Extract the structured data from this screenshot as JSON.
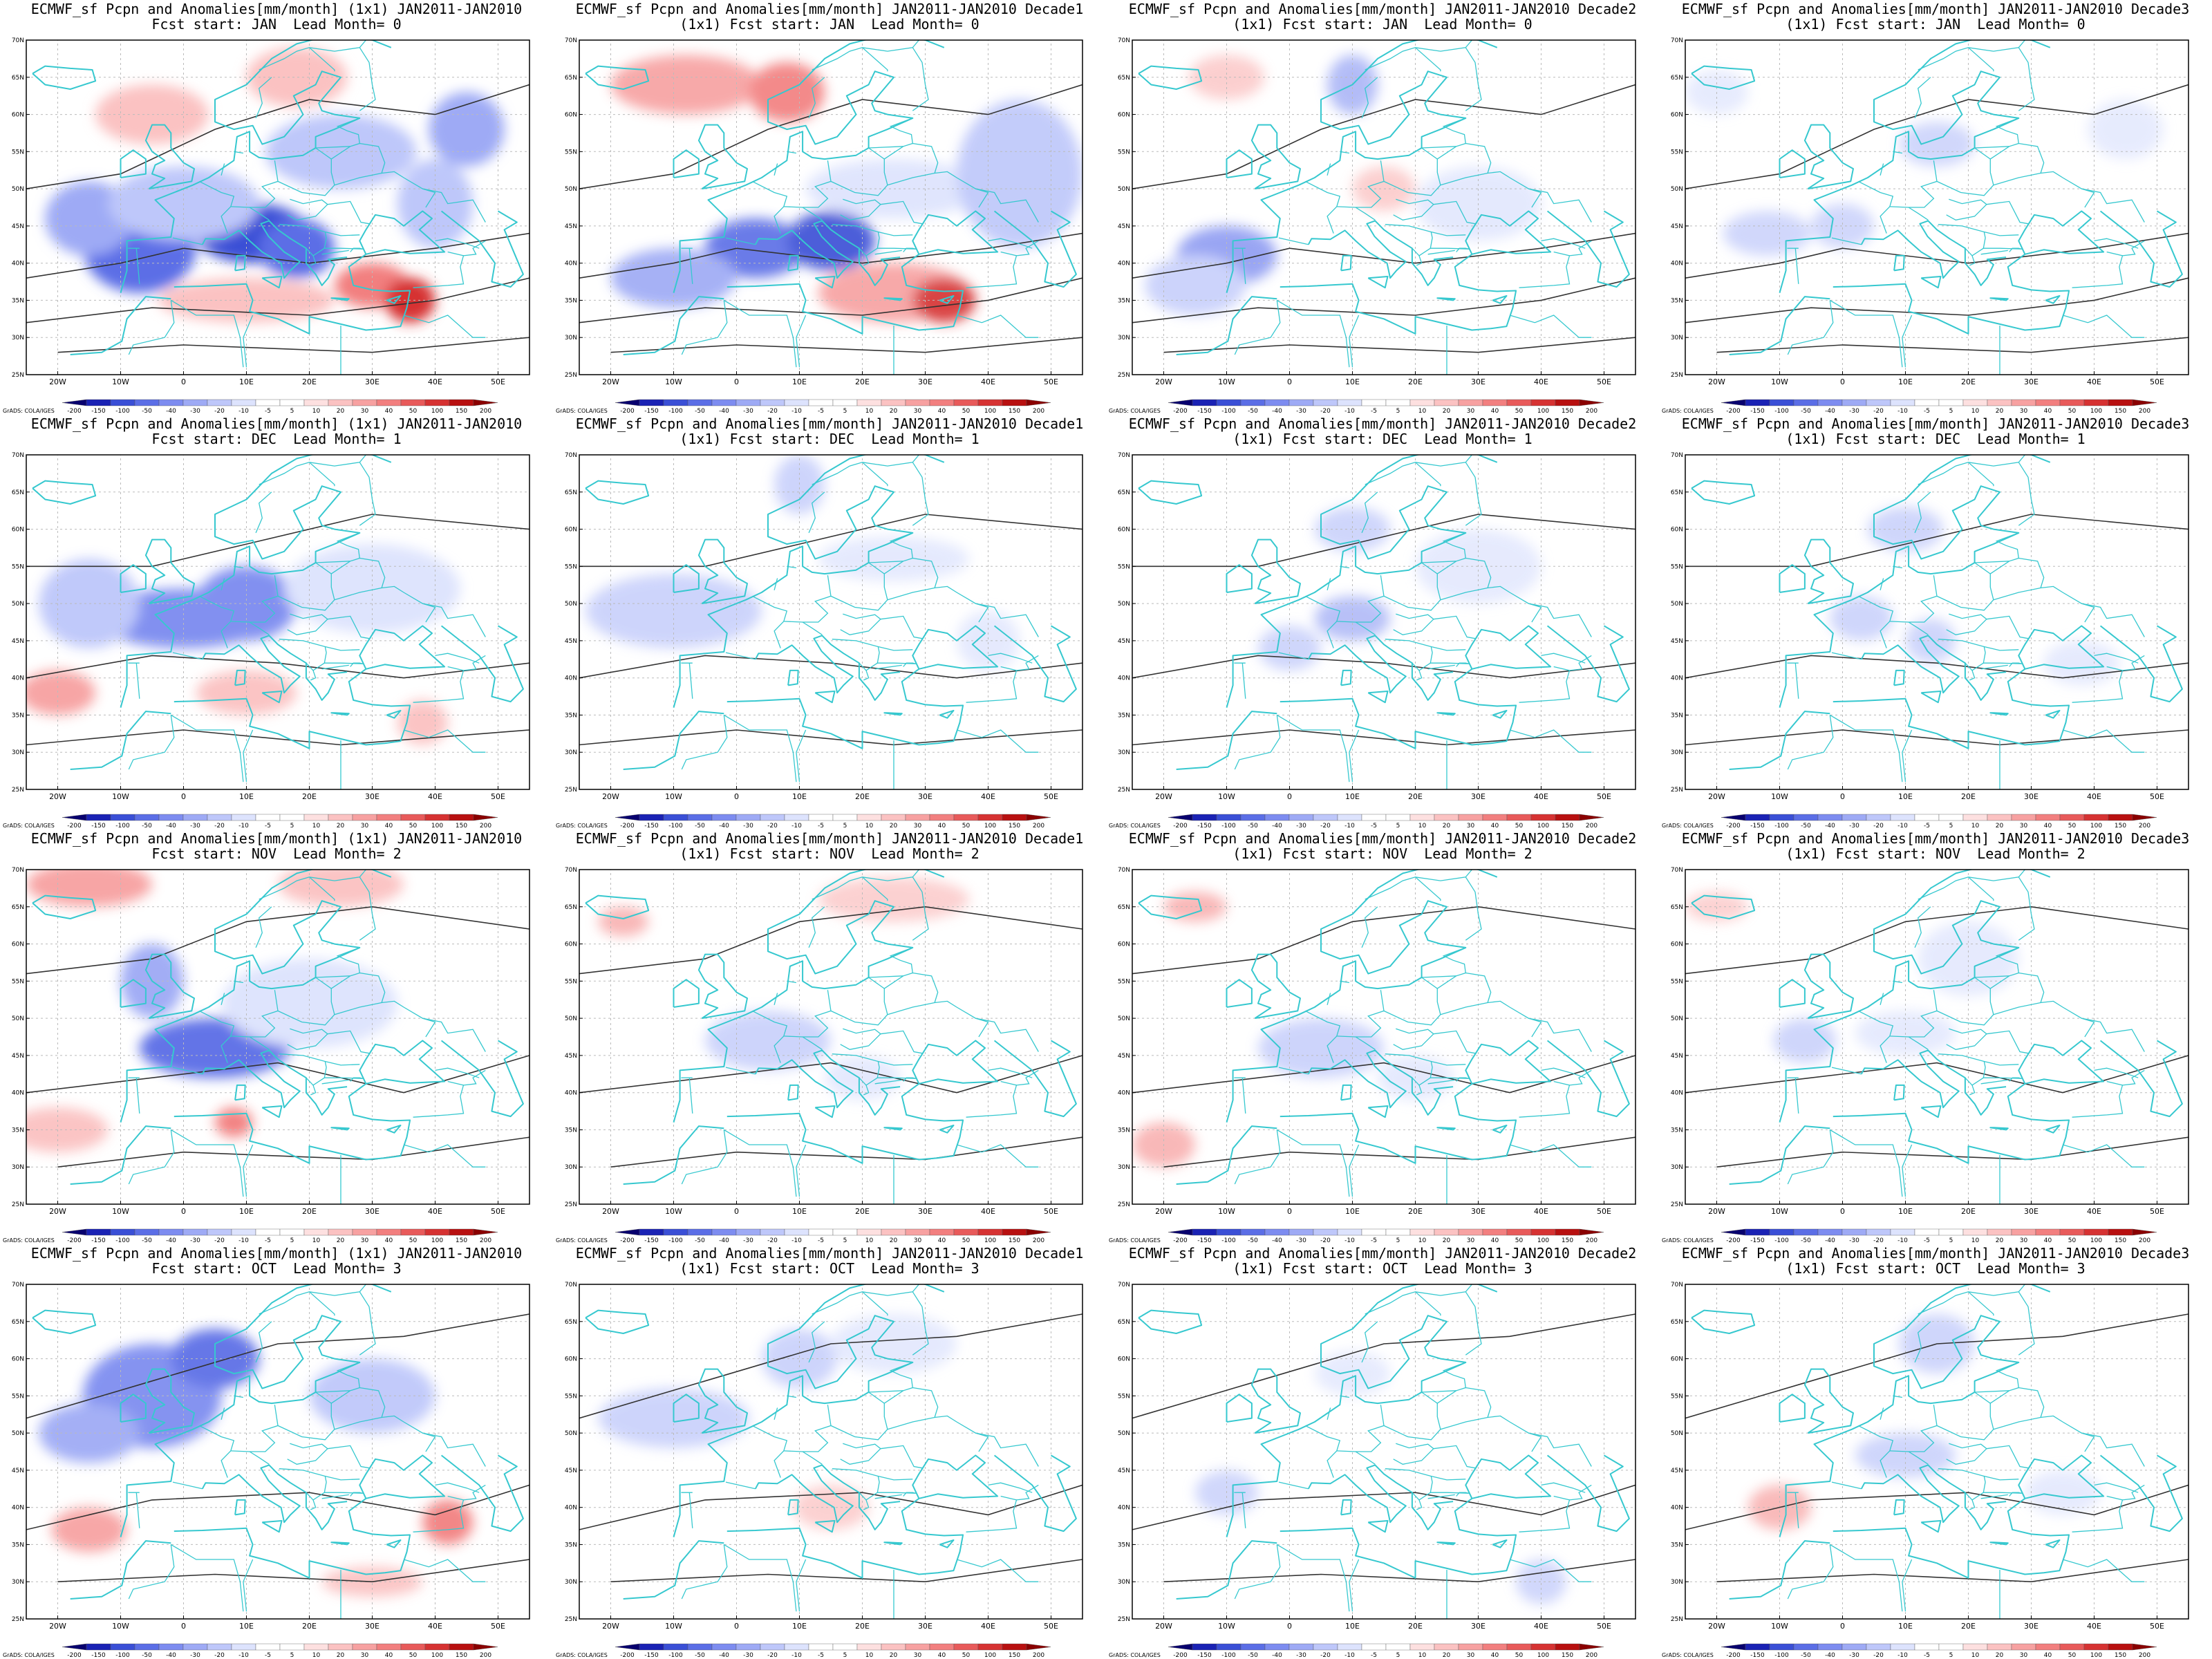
{
  "figure": {
    "product": "ECMWF_sf Pcpn and Anomalies[mm/month]",
    "colorbar_credit": "GrADS: COLA/IGES",
    "colorbar_levels": [
      "-200",
      "-150",
      "-100",
      "-50",
      "-40",
      "-30",
      "-20",
      "-10",
      "-5",
      "5",
      "10",
      "20",
      "30",
      "40",
      "50",
      "100",
      "150",
      "200"
    ],
    "colorbar_colors": [
      "#08006e",
      "#1a22b4",
      "#3a4fd6",
      "#5b6ee6",
      "#7d8cf0",
      "#9eaaf5",
      "#bec7fa",
      "#dde3fd",
      "#ffffff",
      "#ffffff",
      "#fde0e0",
      "#fbc2c2",
      "#f7a1a1",
      "#f27f7f",
      "#e85a5a",
      "#d63232",
      "#b81010",
      "#8a0000"
    ],
    "lon_labels": [
      "20W",
      "10W",
      "0",
      "10E",
      "20E",
      "30E",
      "40E",
      "50E"
    ],
    "lat_labels": [
      "70N",
      "65N",
      "60N",
      "55N",
      "50N",
      "45N",
      "40N",
      "35N",
      "30N",
      "25N"
    ],
    "line_colors": {
      "coast": "#36c8cf",
      "contour": "#333333",
      "grid": "#bbbbbb"
    }
  },
  "panels": [
    {
      "title1": "ECMWF_sf Pcpn and Anomalies[mm/month] (1x1) JAN2011-JAN2010",
      "title2": "Fcst start: JAN  Lead Month= 0",
      "intensity": 1.0
    },
    {
      "title1": "ECMWF_sf Pcpn and Anomalies[mm/month] JAN2011-JAN2010 Decade1",
      "title2": "(1x1) Fcst start: JAN  Lead Month= 0",
      "intensity": 0.8
    },
    {
      "title1": "ECMWF_sf Pcpn and Anomalies[mm/month] JAN2011-JAN2010 Decade2",
      "title2": "(1x1) Fcst start: JAN  Lead Month= 0",
      "intensity": 0.5
    },
    {
      "title1": "ECMWF_sf Pcpn and Anomalies[mm/month] JAN2011-JAN2010 Decade3",
      "title2": "(1x1) Fcst start: JAN  Lead Month= 0",
      "intensity": 0.35
    },
    {
      "title1": "ECMWF_sf Pcpn and Anomalies[mm/month] (1x1) JAN2011-JAN2010",
      "title2": "Fcst start: DEC  Lead Month= 1",
      "intensity": 0.9
    },
    {
      "title1": "ECMWF_sf Pcpn and Anomalies[mm/month] JAN2011-JAN2010 Decade1",
      "title2": "(1x1) Fcst start: DEC  Lead Month= 1",
      "intensity": 0.45
    },
    {
      "title1": "ECMWF_sf Pcpn and Anomalies[mm/month] JAN2011-JAN2010 Decade2",
      "title2": "(1x1) Fcst start: DEC  Lead Month= 1",
      "intensity": 0.4
    },
    {
      "title1": "ECMWF_sf Pcpn and Anomalies[mm/month] JAN2011-JAN2010 Decade3",
      "title2": "(1x1) Fcst start: DEC  Lead Month= 1",
      "intensity": 0.4
    },
    {
      "title1": "ECMWF_sf Pcpn and Anomalies[mm/month] (1x1) JAN2011-JAN2010",
      "title2": "Fcst start: NOV  Lead Month= 2",
      "intensity": 0.9
    },
    {
      "title1": "ECMWF_sf Pcpn and Anomalies[mm/month] JAN2011-JAN2010 Decade1",
      "title2": "(1x1) Fcst start: NOV  Lead Month= 2",
      "intensity": 0.45
    },
    {
      "title1": "ECMWF_sf Pcpn and Anomalies[mm/month] JAN2011-JAN2010 Decade2",
      "title2": "(1x1) Fcst start: NOV  Lead Month= 2",
      "intensity": 0.45
    },
    {
      "title1": "ECMWF_sf Pcpn and Anomalies[mm/month] JAN2011-JAN2010 Decade3",
      "title2": "(1x1) Fcst start: NOV  Lead Month= 2",
      "intensity": 0.4
    },
    {
      "title1": "ECMWF_sf Pcpn and Anomalies[mm/month] (1x1) JAN2011-JAN2010",
      "title2": "Fcst start: OCT  Lead Month= 3",
      "intensity": 0.85
    },
    {
      "title1": "ECMWF_sf Pcpn and Anomalies[mm/month] JAN2011-JAN2010 Decade1",
      "title2": "(1x1) Fcst start: OCT  Lead Month= 3",
      "intensity": 0.45
    },
    {
      "title1": "ECMWF_sf Pcpn and Anomalies[mm/month] JAN2011-JAN2010 Decade2",
      "title2": "(1x1) Fcst start: OCT  Lead Month= 3",
      "intensity": 0.35
    },
    {
      "title1": "ECMWF_sf Pcpn and Anomalies[mm/month] JAN2011-JAN2010 Decade3",
      "title2": "(1x1) Fcst start: OCT  Lead Month= 3",
      "intensity": 0.4
    }
  ]
}
